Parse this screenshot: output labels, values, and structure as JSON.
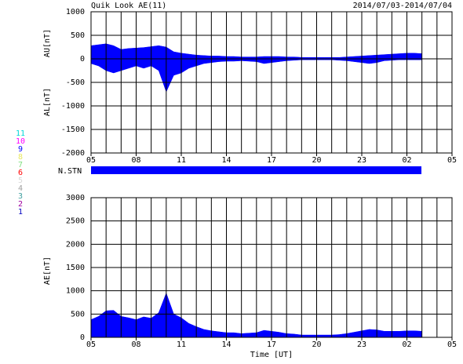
{
  "header": {
    "title": "Quik Look AE(11)",
    "date_range": "2014/07/03-2014/07/04"
  },
  "stations": {
    "label": "N.STN",
    "color": "#0000ff",
    "legend": [
      {
        "label": "11",
        "color": "#00d8d8"
      },
      {
        "label": "10",
        "color": "#ff00ff"
      },
      {
        "label": "9",
        "color": "#0000ff"
      },
      {
        "label": "8",
        "color": "#e8e860"
      },
      {
        "label": "7",
        "color": "#80e080"
      },
      {
        "label": "6",
        "color": "#ff0000"
      },
      {
        "label": "5",
        "color": "#d8d8d8"
      },
      {
        "label": "4",
        "color": "#a0a0a0"
      },
      {
        "label": "3",
        "color": "#40a0a0"
      },
      {
        "label": "2",
        "color": "#a000a0"
      },
      {
        "label": "1",
        "color": "#0000c0"
      }
    ]
  },
  "chart_data": [
    {
      "type": "area",
      "ylabels": [
        "AU[nT]",
        "AL[nT]"
      ],
      "x": [
        0,
        0.5,
        1,
        1.5,
        2,
        2.5,
        3,
        3.5,
        4,
        4.5,
        5,
        5.5,
        6,
        6.5,
        7,
        7.5,
        8,
        8.5,
        9,
        9.5,
        10,
        10.5,
        11,
        11.5,
        12,
        12.5,
        13,
        13.5,
        14,
        14.5,
        15,
        15.5,
        16,
        16.5,
        17,
        17.5,
        18,
        18.5,
        19,
        19.5,
        20,
        20.5,
        21,
        21.5,
        22
      ],
      "xlim": [
        0,
        24
      ],
      "xticks": [
        {
          "value": 0,
          "label": "05"
        },
        {
          "value": 3,
          "label": "08"
        },
        {
          "value": 6,
          "label": "11"
        },
        {
          "value": 9,
          "label": "14"
        },
        {
          "value": 12,
          "label": "17"
        },
        {
          "value": 15,
          "label": "20"
        },
        {
          "value": 18,
          "label": "23"
        },
        {
          "value": 21,
          "label": "02"
        },
        {
          "value": 24,
          "label": "05"
        }
      ],
      "xgrid": [
        1,
        2,
        3,
        4,
        5,
        6,
        7,
        8,
        9,
        10,
        11,
        12,
        13,
        14,
        15,
        16,
        17,
        18,
        19,
        20,
        21,
        22,
        23
      ],
      "ylim": [
        -2000,
        1000
      ],
      "yticks": [
        -2000,
        -1500,
        -1000,
        -500,
        0,
        500,
        1000
      ],
      "series": [
        {
          "name": "AU",
          "color": "#0000ff",
          "values": [
            280,
            300,
            320,
            280,
            200,
            220,
            230,
            240,
            260,
            280,
            250,
            150,
            120,
            100,
            80,
            70,
            60,
            60,
            50,
            50,
            40,
            40,
            40,
            50,
            50,
            50,
            40,
            40,
            30,
            30,
            30,
            30,
            30,
            30,
            40,
            50,
            60,
            70,
            80,
            90,
            100,
            110,
            120,
            120,
            110
          ]
        },
        {
          "name": "AL",
          "color": "#0000ff",
          "values": [
            -100,
            -150,
            -250,
            -300,
            -250,
            -200,
            -150,
            -200,
            -150,
            -250,
            -700,
            -350,
            -300,
            -200,
            -150,
            -100,
            -80,
            -60,
            -50,
            -50,
            -40,
            -50,
            -60,
            -100,
            -80,
            -60,
            -40,
            -30,
            -20,
            -20,
            -20,
            -20,
            -20,
            -30,
            -40,
            -60,
            -80,
            -100,
            -80,
            -40,
            -30,
            -20,
            -20,
            -20,
            -20
          ]
        }
      ]
    },
    {
      "type": "area",
      "ylabel": "AE[nT]",
      "xlabel": "Time [UT]",
      "x": [
        0,
        0.5,
        1,
        1.5,
        2,
        2.5,
        3,
        3.5,
        4,
        4.5,
        5,
        5.5,
        6,
        6.5,
        7,
        7.5,
        8,
        8.5,
        9,
        9.5,
        10,
        10.5,
        11,
        11.5,
        12,
        12.5,
        13,
        13.5,
        14,
        14.5,
        15,
        15.5,
        16,
        16.5,
        17,
        17.5,
        18,
        18.5,
        19,
        19.5,
        20,
        20.5,
        21,
        21.5,
        22
      ],
      "xlim": [
        0,
        24
      ],
      "xticks": [
        {
          "value": 0,
          "label": "05"
        },
        {
          "value": 3,
          "label": "08"
        },
        {
          "value": 6,
          "label": "11"
        },
        {
          "value": 9,
          "label": "14"
        },
        {
          "value": 12,
          "label": "17"
        },
        {
          "value": 15,
          "label": "20"
        },
        {
          "value": 18,
          "label": "23"
        },
        {
          "value": 21,
          "label": "02"
        },
        {
          "value": 24,
          "label": "05"
        }
      ],
      "xgrid": [
        1,
        2,
        3,
        4,
        5,
        6,
        7,
        8,
        9,
        10,
        11,
        12,
        13,
        14,
        15,
        16,
        17,
        18,
        19,
        20,
        21,
        22,
        23
      ],
      "ylim": [
        0,
        3000
      ],
      "yticks": [
        0,
        500,
        1000,
        1500,
        2000,
        2500,
        3000
      ],
      "series": [
        {
          "name": "AE",
          "color": "#0000ff",
          "values": [
            380,
            450,
            570,
            580,
            450,
            420,
            380,
            440,
            410,
            530,
            950,
            500,
            420,
            300,
            230,
            170,
            140,
            120,
            100,
            100,
            80,
            90,
            100,
            150,
            130,
            110,
            80,
            70,
            50,
            50,
            50,
            50,
            50,
            60,
            80,
            110,
            140,
            170,
            160,
            130,
            130,
            130,
            140,
            140,
            130
          ]
        }
      ]
    }
  ]
}
